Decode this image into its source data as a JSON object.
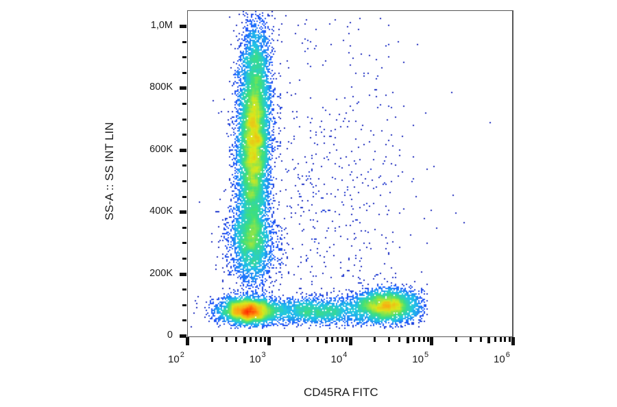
{
  "chart_data": {
    "type": "scatter",
    "subtype": "flow-cytometry density dot plot",
    "title": "",
    "xlabel": "CD45RA FITC",
    "ylabel": "SS-A :: SS INT LIN",
    "x_scale": "log",
    "x_range": [
      100,
      1000000
    ],
    "y_scale": "linear",
    "y_range": [
      0,
      1050000
    ],
    "x_ticks": [
      {
        "value": 100,
        "base": "10",
        "exp": "2"
      },
      {
        "value": 1000,
        "base": "10",
        "exp": "3"
      },
      {
        "value": 10000,
        "base": "10",
        "exp": "4"
      },
      {
        "value": 100000,
        "base": "10",
        "exp": "5"
      },
      {
        "value": 1000000,
        "base": "10",
        "exp": "6"
      }
    ],
    "y_ticks": [
      {
        "value": 0,
        "label": "0"
      },
      {
        "value": 200000,
        "label": "200K"
      },
      {
        "value": 400000,
        "label": "400K"
      },
      {
        "value": 600000,
        "label": "600K"
      },
      {
        "value": 800000,
        "label": "800K"
      },
      {
        "value": 1000000,
        "label": "1,0M"
      }
    ],
    "grid": false,
    "legend": null,
    "color_scale": [
      "#1a1aa8",
      "#1f5bff",
      "#21c4e8",
      "#3fe07a",
      "#d8e81c",
      "#ffa010",
      "#ff2a00"
    ],
    "populations": [
      {
        "name": "granulocyte-like (CD45RA low, high SSC)",
        "log10_x_center": 2.82,
        "log10_x_sd": 0.1,
        "y_center": 640000,
        "y_sd": 180000,
        "y_min": 180000,
        "y_max": 1050000,
        "n": 9000,
        "peak_density": "red"
      },
      {
        "name": "lower SSC tail (CD45RA low)",
        "log10_x_center": 2.8,
        "log10_x_sd": 0.14,
        "y_center": 300000,
        "y_sd": 70000,
        "n": 2200,
        "peak_density": "green"
      },
      {
        "name": "lymphocytes CD45RA low",
        "log10_x_center": 2.75,
        "log10_x_sd": 0.18,
        "y_center": 80000,
        "y_sd": 22000,
        "n": 3200,
        "peak_density": "yellow-green"
      },
      {
        "name": "lymphocytes CD45RA intermediate",
        "log10_x_center": 3.6,
        "log10_x_sd": 0.35,
        "y_center": 80000,
        "y_sd": 22000,
        "n": 1800,
        "peak_density": "cyan"
      },
      {
        "name": "lymphocytes CD45RA high",
        "log10_x_center": 4.45,
        "log10_x_sd": 0.2,
        "y_center": 95000,
        "y_sd": 28000,
        "n": 3000,
        "peak_density": "green-yellow"
      },
      {
        "name": "sparse events",
        "log10_x_center": 3.7,
        "log10_x_sd": 0.55,
        "y_center": 400000,
        "y_sd": 330000,
        "n": 700,
        "peak_density": "blue"
      }
    ]
  }
}
